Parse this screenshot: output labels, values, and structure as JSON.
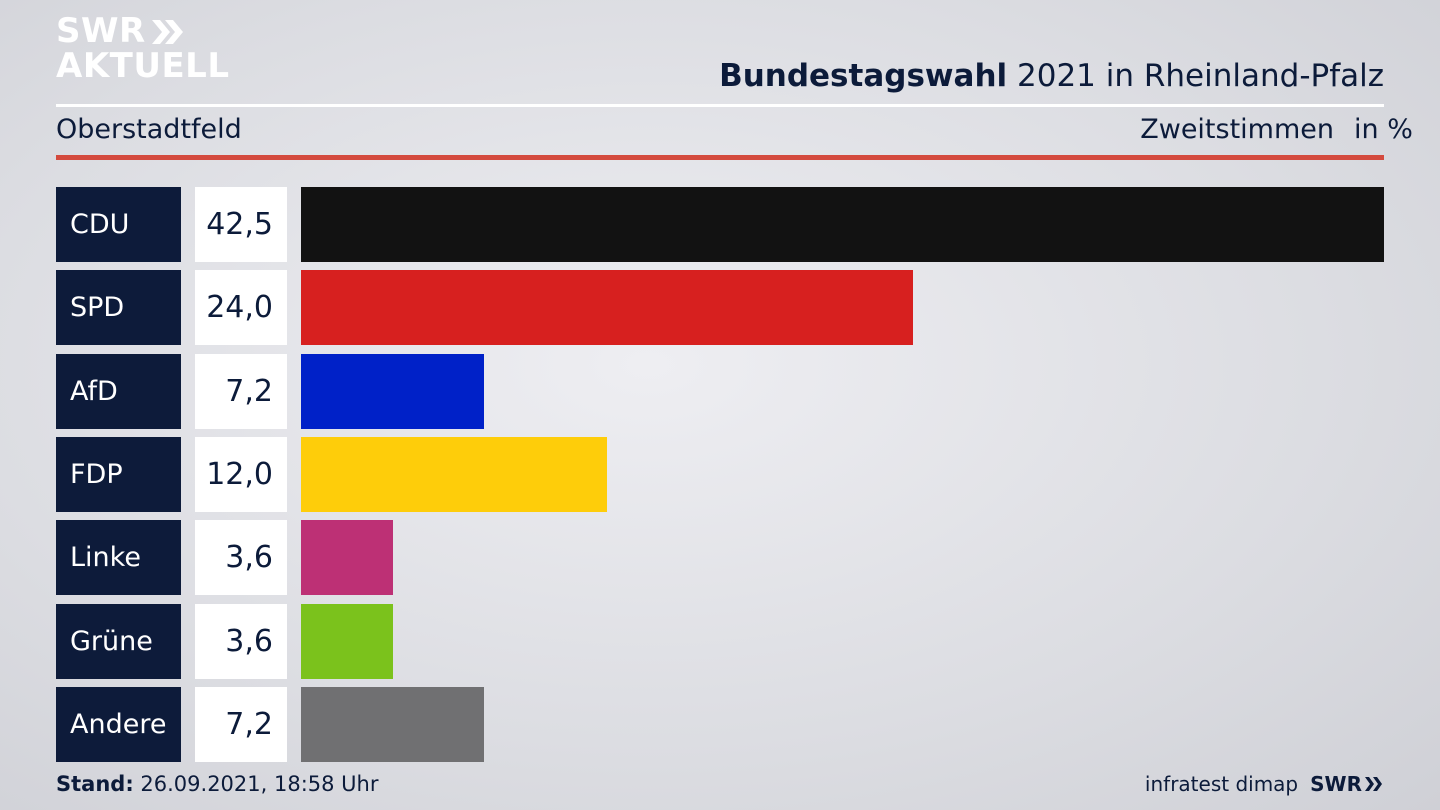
{
  "logo": {
    "line1": "SWR",
    "line2": "AKTUELL"
  },
  "header": {
    "title_bold": "Bundestagswahl",
    "title_rest": " 2021 in Rheinland-Pfalz",
    "location": "Oberstadtfeld",
    "metric": "Zweitstimmen",
    "unit": "in %"
  },
  "chart_data": {
    "type": "bar",
    "orientation": "horizontal",
    "categories": [
      "CDU",
      "SPD",
      "AfD",
      "FDP",
      "Linke",
      "Grüne",
      "Andere"
    ],
    "values": [
      42.5,
      24.0,
      7.2,
      12.0,
      3.6,
      3.6,
      7.2
    ],
    "value_labels": [
      "42,5",
      "24,0",
      "7,2",
      "12,0",
      "3,6",
      "3,6",
      "7,2"
    ],
    "colors": [
      "#121212",
      "#d7201f",
      "#0021c8",
      "#fecd0a",
      "#bd3075",
      "#7bc21c",
      "#707072"
    ],
    "xlim": [
      0,
      42.5
    ]
  },
  "footer": {
    "stand_label": "Stand:",
    "stand_value": " 26.09.2021, 18:58 Uhr",
    "source": "infratest dimap",
    "brand": "SWR"
  }
}
